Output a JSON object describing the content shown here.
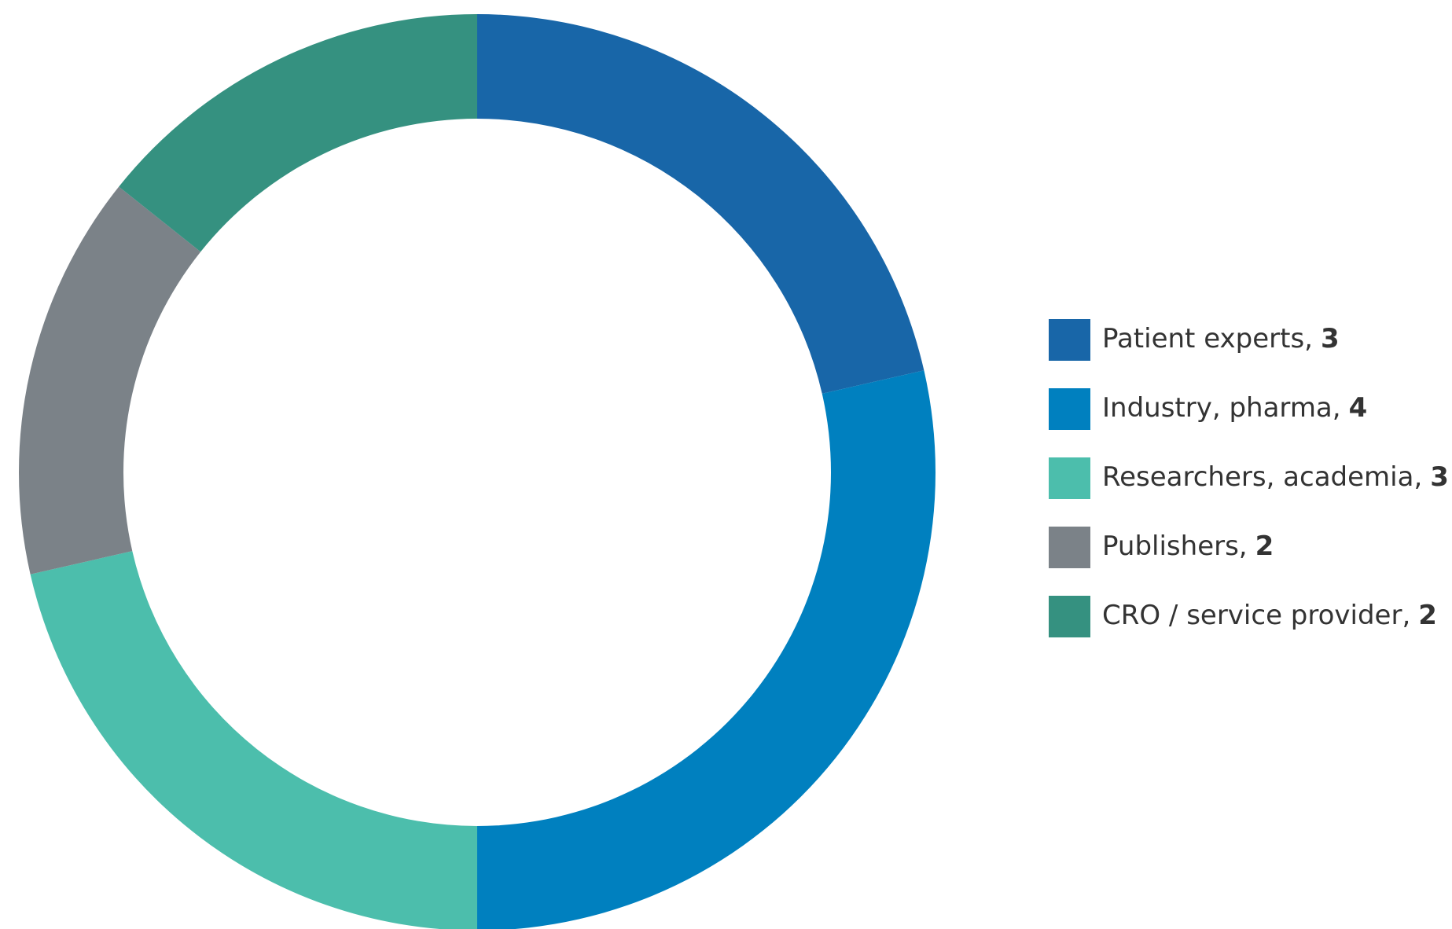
{
  "chart_data": {
    "type": "donut",
    "categories": [
      "Patient experts,",
      "Industry, pharma,",
      "Researchers, academia,",
      "Publishers,",
      "CRO / service provider,"
    ],
    "values": [
      3,
      4,
      3,
      2,
      2
    ],
    "colors": [
      "#1866a8",
      "#0080bf",
      "#4cbeac",
      "#7b8288",
      "#359180"
    ],
    "legend": "right"
  }
}
